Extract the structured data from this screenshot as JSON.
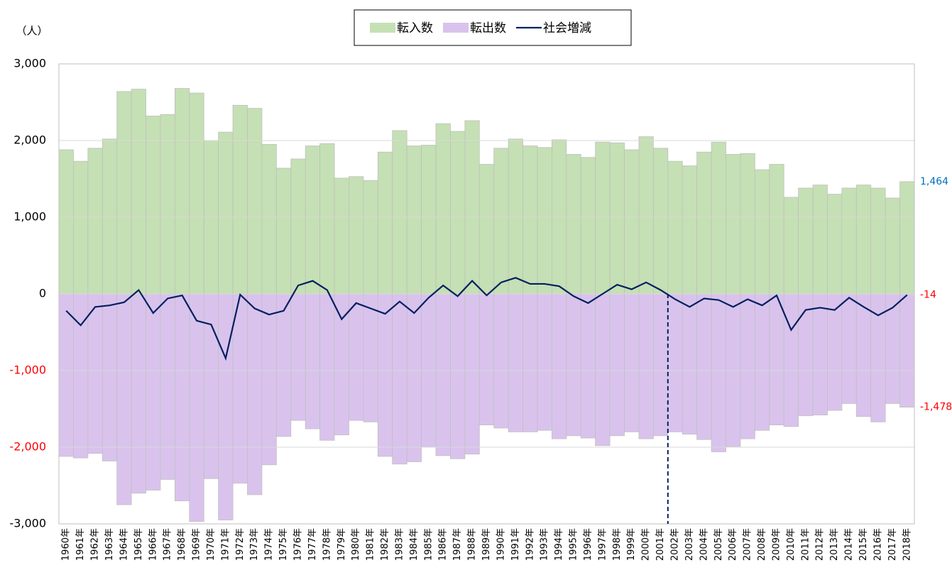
{
  "chart_data": {
    "type": "bar",
    "unit_label": "（人）",
    "categories": [
      "1960年",
      "1961年",
      "1962年",
      "1963年",
      "1964年",
      "1965年",
      "1966年",
      "1967年",
      "1968年",
      "1969年",
      "1970年",
      "1971年",
      "1972年",
      "1973年",
      "1974年",
      "1975年",
      "1976年",
      "1977年",
      "1978年",
      "1979年",
      "1980年",
      "1981年",
      "1982年",
      "1983年",
      "1984年",
      "1985年",
      "1986年",
      "1987年",
      "1988年",
      "1989年",
      "1990年",
      "1991年",
      "1992年",
      "1993年",
      "1994年",
      "1995年",
      "1996年",
      "1997年",
      "1998年",
      "1999年",
      "2000年",
      "2001年",
      "2002年",
      "2003年",
      "2004年",
      "2005年",
      "2006年",
      "2007年",
      "2008年",
      "2009年",
      "2010年",
      "2011年",
      "2012年",
      "2013年",
      "2014年",
      "2015年",
      "2016年",
      "2017年",
      "2018年"
    ],
    "series": [
      {
        "name": "転入数",
        "kind": "bar",
        "color": "#c5e0b4",
        "end_label": "1,464",
        "end_label_color": "#0070c0",
        "values": [
          1880,
          1730,
          1900,
          2020,
          2640,
          2670,
          2320,
          2340,
          2680,
          2620,
          2000,
          2110,
          2460,
          2420,
          1950,
          1640,
          1760,
          1930,
          1960,
          1510,
          1530,
          1480,
          1850,
          2130,
          1930,
          1940,
          2220,
          2120,
          2260,
          1690,
          1900,
          2020,
          1930,
          1910,
          2010,
          1820,
          1780,
          1980,
          1970,
          1880,
          2050,
          1900,
          1730,
          1670,
          1850,
          1980,
          1820,
          1830,
          1620,
          1690,
          1260,
          1380,
          1420,
          1300,
          1380,
          1420,
          1380,
          1250,
          1464
        ]
      },
      {
        "name": "転出数",
        "kind": "bar",
        "color": "#d9c3ed",
        "end_label": "-1,478",
        "end_label_color": "#ff0000",
        "values": [
          -2120,
          -2140,
          -2080,
          -2180,
          -2750,
          -2600,
          -2560,
          -2420,
          -2700,
          -2970,
          -2410,
          -2950,
          -2470,
          -2620,
          -2230,
          -1860,
          -1650,
          -1760,
          -1910,
          -1840,
          -1650,
          -1670,
          -2120,
          -2220,
          -2190,
          -2000,
          -2110,
          -2150,
          -2090,
          -1710,
          -1750,
          -1800,
          -1800,
          -1780,
          -1890,
          -1850,
          -1880,
          -1980,
          -1850,
          -1800,
          -1890,
          -1850,
          -1800,
          -1830,
          -1900,
          -2060,
          -1990,
          -1890,
          -1780,
          -1710,
          -1730,
          -1590,
          -1580,
          -1520,
          -1430,
          -1600,
          -1670,
          -1430,
          -1478
        ]
      },
      {
        "name": "社会増減",
        "kind": "line",
        "color": "#002060",
        "end_label": "-14",
        "end_label_color": "#ff0000",
        "values": [
          -220,
          -410,
          -170,
          -150,
          -110,
          50,
          -250,
          -60,
          -20,
          -350,
          -400,
          -840,
          -10,
          -190,
          -270,
          -220,
          110,
          170,
          50,
          -330,
          -120,
          -190,
          -260,
          -100,
          -250,
          -50,
          110,
          -30,
          170,
          -20,
          150,
          210,
          130,
          130,
          100,
          -30,
          -120,
          0,
          120,
          60,
          150,
          50,
          -70,
          -170,
          -60,
          -80,
          -170,
          -70,
          -150,
          -20,
          -470,
          -210,
          -180,
          -210,
          -50,
          -170,
          -280,
          -180,
          -14
        ]
      }
    ],
    "ylim": [
      -3000,
      3000
    ],
    "yticks": [
      {
        "value": -3000,
        "label": "-3,000"
      },
      {
        "value": -2000,
        "label": "-2,000",
        "color": "#ff0000"
      },
      {
        "value": -1000,
        "label": "-1,000",
        "color": "#ff0000"
      },
      0,
      {
        "value": 1000,
        "label": "1,000"
      },
      {
        "value": 2000,
        "label": "2,000"
      },
      {
        "value": 3000,
        "label": "3,000"
      }
    ],
    "grid": true,
    "legend": "top",
    "marker_line": {
      "category": "2002年",
      "color": "#002060",
      "dashed": true
    }
  }
}
